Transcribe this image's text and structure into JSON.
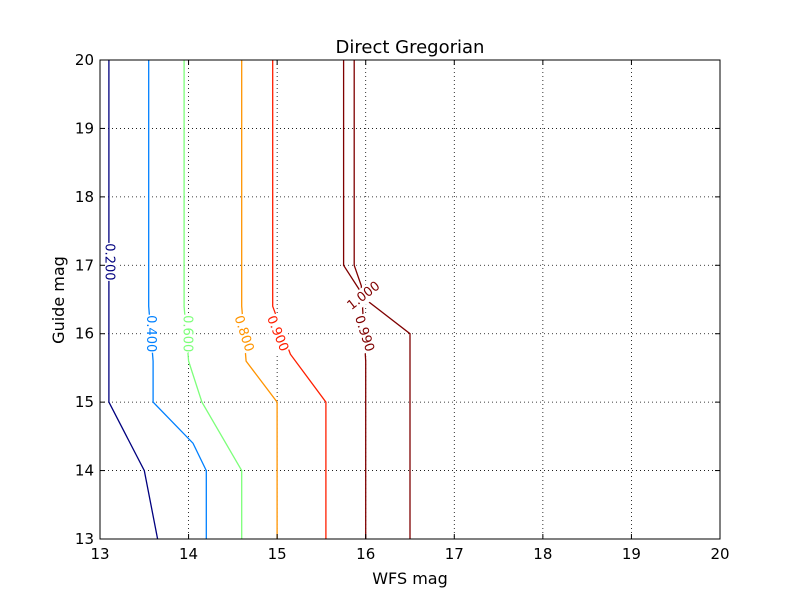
{
  "chart_data": {
    "type": "contour",
    "title": "Direct Gregorian",
    "xlabel": "WFS mag",
    "ylabel": "Guide mag",
    "xlim": [
      13,
      20
    ],
    "ylim": [
      13,
      20
    ],
    "xticks": [
      "13",
      "14",
      "15",
      "16",
      "17",
      "18",
      "19",
      "20"
    ],
    "yticks": [
      "13",
      "14",
      "15",
      "16",
      "17",
      "18",
      "19",
      "20"
    ],
    "grid": true,
    "contours": [
      {
        "name": "0.200",
        "color": "#00007f",
        "points": [
          [
            13.1,
            20
          ],
          [
            13.1,
            17.4
          ],
          [
            13.1,
            16.7
          ],
          [
            13.1,
            15
          ],
          [
            13.5,
            14
          ],
          [
            13.65,
            13
          ]
        ],
        "label_at": [
          13.1,
          17.05
        ],
        "label_rotation": 90
      },
      {
        "name": "0.400",
        "color": "#0080ff",
        "points": [
          [
            13.55,
            20
          ],
          [
            13.55,
            16.4
          ],
          [
            13.6,
            15.6
          ],
          [
            13.6,
            15
          ],
          [
            14.05,
            14.4
          ],
          [
            14.2,
            14
          ],
          [
            14.2,
            13
          ]
        ],
        "label_at": [
          13.57,
          16.0
        ],
        "label_rotation": 90
      },
      {
        "name": "0.600",
        "color": "#7dff7a",
        "points": [
          [
            13.95,
            20
          ],
          [
            13.95,
            16.4
          ],
          [
            14.0,
            15.6
          ],
          [
            14.15,
            15
          ],
          [
            14.6,
            14
          ],
          [
            14.6,
            13
          ]
        ],
        "label_at": [
          13.98,
          16.0
        ],
        "label_rotation": 90
      },
      {
        "name": "0.800",
        "color": "#ff9400",
        "points": [
          [
            14.6,
            20
          ],
          [
            14.6,
            16.4
          ],
          [
            14.65,
            15.6
          ],
          [
            15.0,
            15
          ],
          [
            15.0,
            13
          ]
        ],
        "label_at": [
          14.62,
          16.0
        ],
        "label_rotation": 72
      },
      {
        "name": "0.900",
        "color": "#ff1e00",
        "points": [
          [
            14.95,
            20
          ],
          [
            14.95,
            16.4
          ],
          [
            15.15,
            15.7
          ],
          [
            15.55,
            15
          ],
          [
            15.55,
            13
          ]
        ],
        "label_at": [
          15.0,
          16.0
        ],
        "label_rotation": 68
      },
      {
        "name": "0.990",
        "color": "#7f0000",
        "points": [
          [
            15.87,
            20
          ],
          [
            15.87,
            17.0
          ],
          [
            15.95,
            16.7
          ],
          [
            16.0,
            15.6
          ],
          [
            16.0,
            13
          ]
        ],
        "label_at": [
          15.98,
          16.0
        ],
        "label_rotation": 72
      },
      {
        "name": "1.000",
        "color": "#7f0000",
        "points": [
          [
            15.75,
            20
          ],
          [
            15.75,
            17.0
          ],
          [
            16.0,
            16.5
          ],
          [
            16.5,
            16.0
          ],
          [
            16.5,
            13
          ]
        ],
        "label_at": [
          15.98,
          16.55
        ],
        "label_rotation": -38
      }
    ]
  }
}
